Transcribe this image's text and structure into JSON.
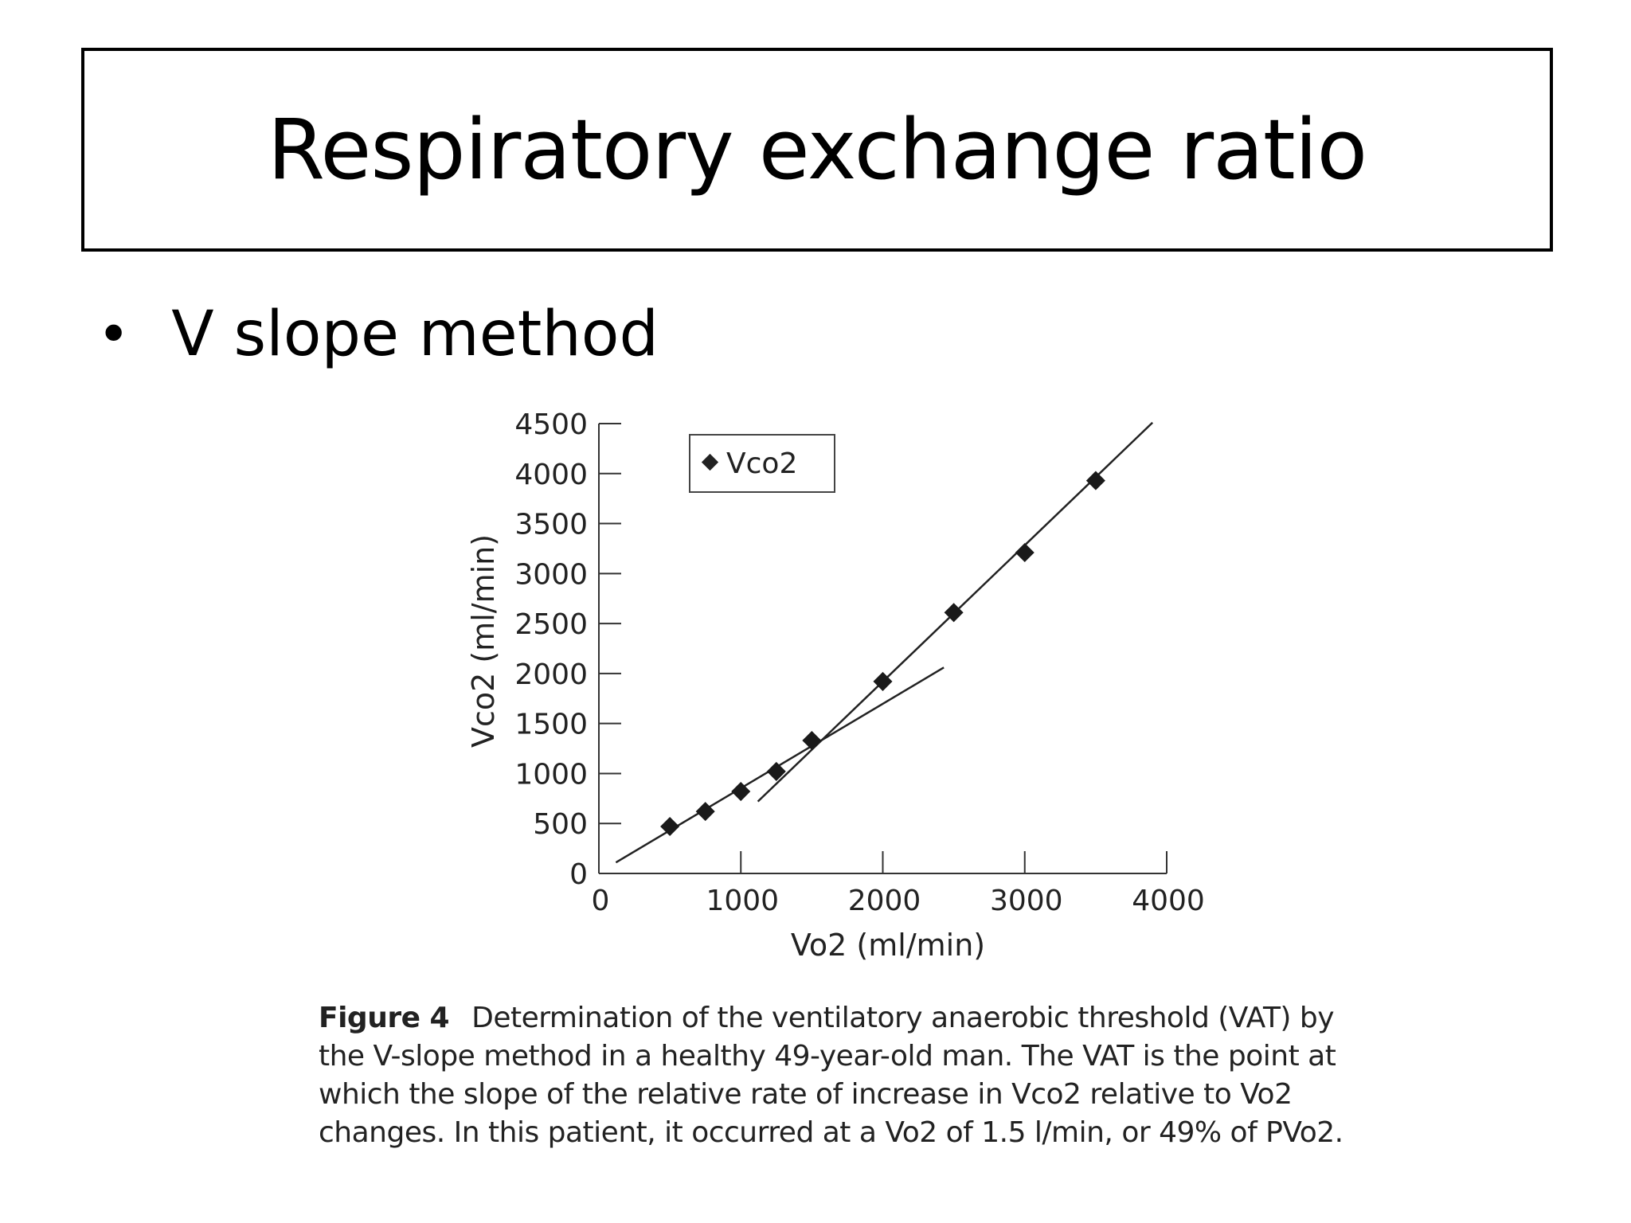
{
  "slide": {
    "title": "Respiratory exchange ratio",
    "bullet": "V slope method"
  },
  "chart_data": {
    "type": "scatter",
    "xlabel": "Vo2 (ml/min)",
    "ylabel": "Vco2 (ml/min)",
    "xlim": [
      0,
      4000
    ],
    "ylim": [
      0,
      4500
    ],
    "x_ticks": [
      0,
      1000,
      2000,
      3000,
      4000
    ],
    "y_ticks": [
      0,
      500,
      1000,
      1500,
      2000,
      2500,
      3000,
      3500,
      4000,
      4500
    ],
    "legend_position": "top-left",
    "grid": false,
    "series": [
      {
        "name": "Vco2",
        "x": [
          500,
          750,
          1000,
          1250,
          1500,
          2000,
          2500,
          3000,
          3500
        ],
        "y": [
          470,
          620,
          820,
          1020,
          1330,
          1920,
          2610,
          3210,
          3930
        ]
      }
    ],
    "fit_lines": [
      {
        "x": [
          120,
          2430
        ],
        "y": [
          110,
          2060
        ]
      },
      {
        "x": [
          1120,
          3900
        ],
        "y": [
          720,
          4510
        ]
      }
    ]
  },
  "caption": {
    "label": "Figure 4",
    "text": "Determination of the ventilatory anaerobic threshold (VAT) by the V-slope method in a healthy 49-year-old man. The VAT is the point at which the slope of the relative rate of increase in Vco2 relative to Vo2 changes. In this patient, it occurred at a Vo2 of 1.5 l/min, or 49% of PVo2."
  }
}
